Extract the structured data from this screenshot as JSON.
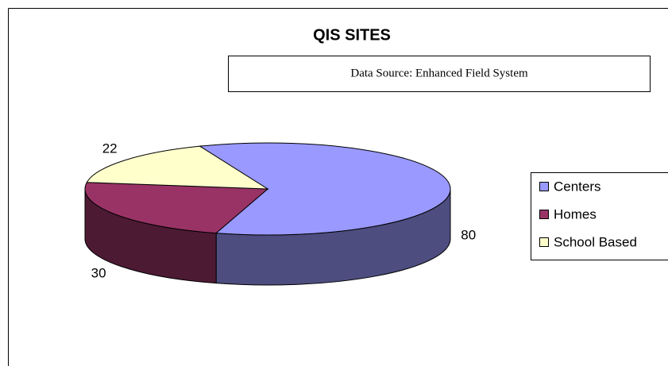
{
  "chart_data": {
    "type": "pie",
    "title": "QIS SITES",
    "subtitle": "Data Source: Enhanced Field System",
    "categories": [
      "Centers",
      "Homes",
      "School Based"
    ],
    "values": [
      80,
      30,
      22
    ],
    "colors": [
      "#9999ff",
      "#993366",
      "#ffffcc"
    ],
    "legend": "right"
  }
}
